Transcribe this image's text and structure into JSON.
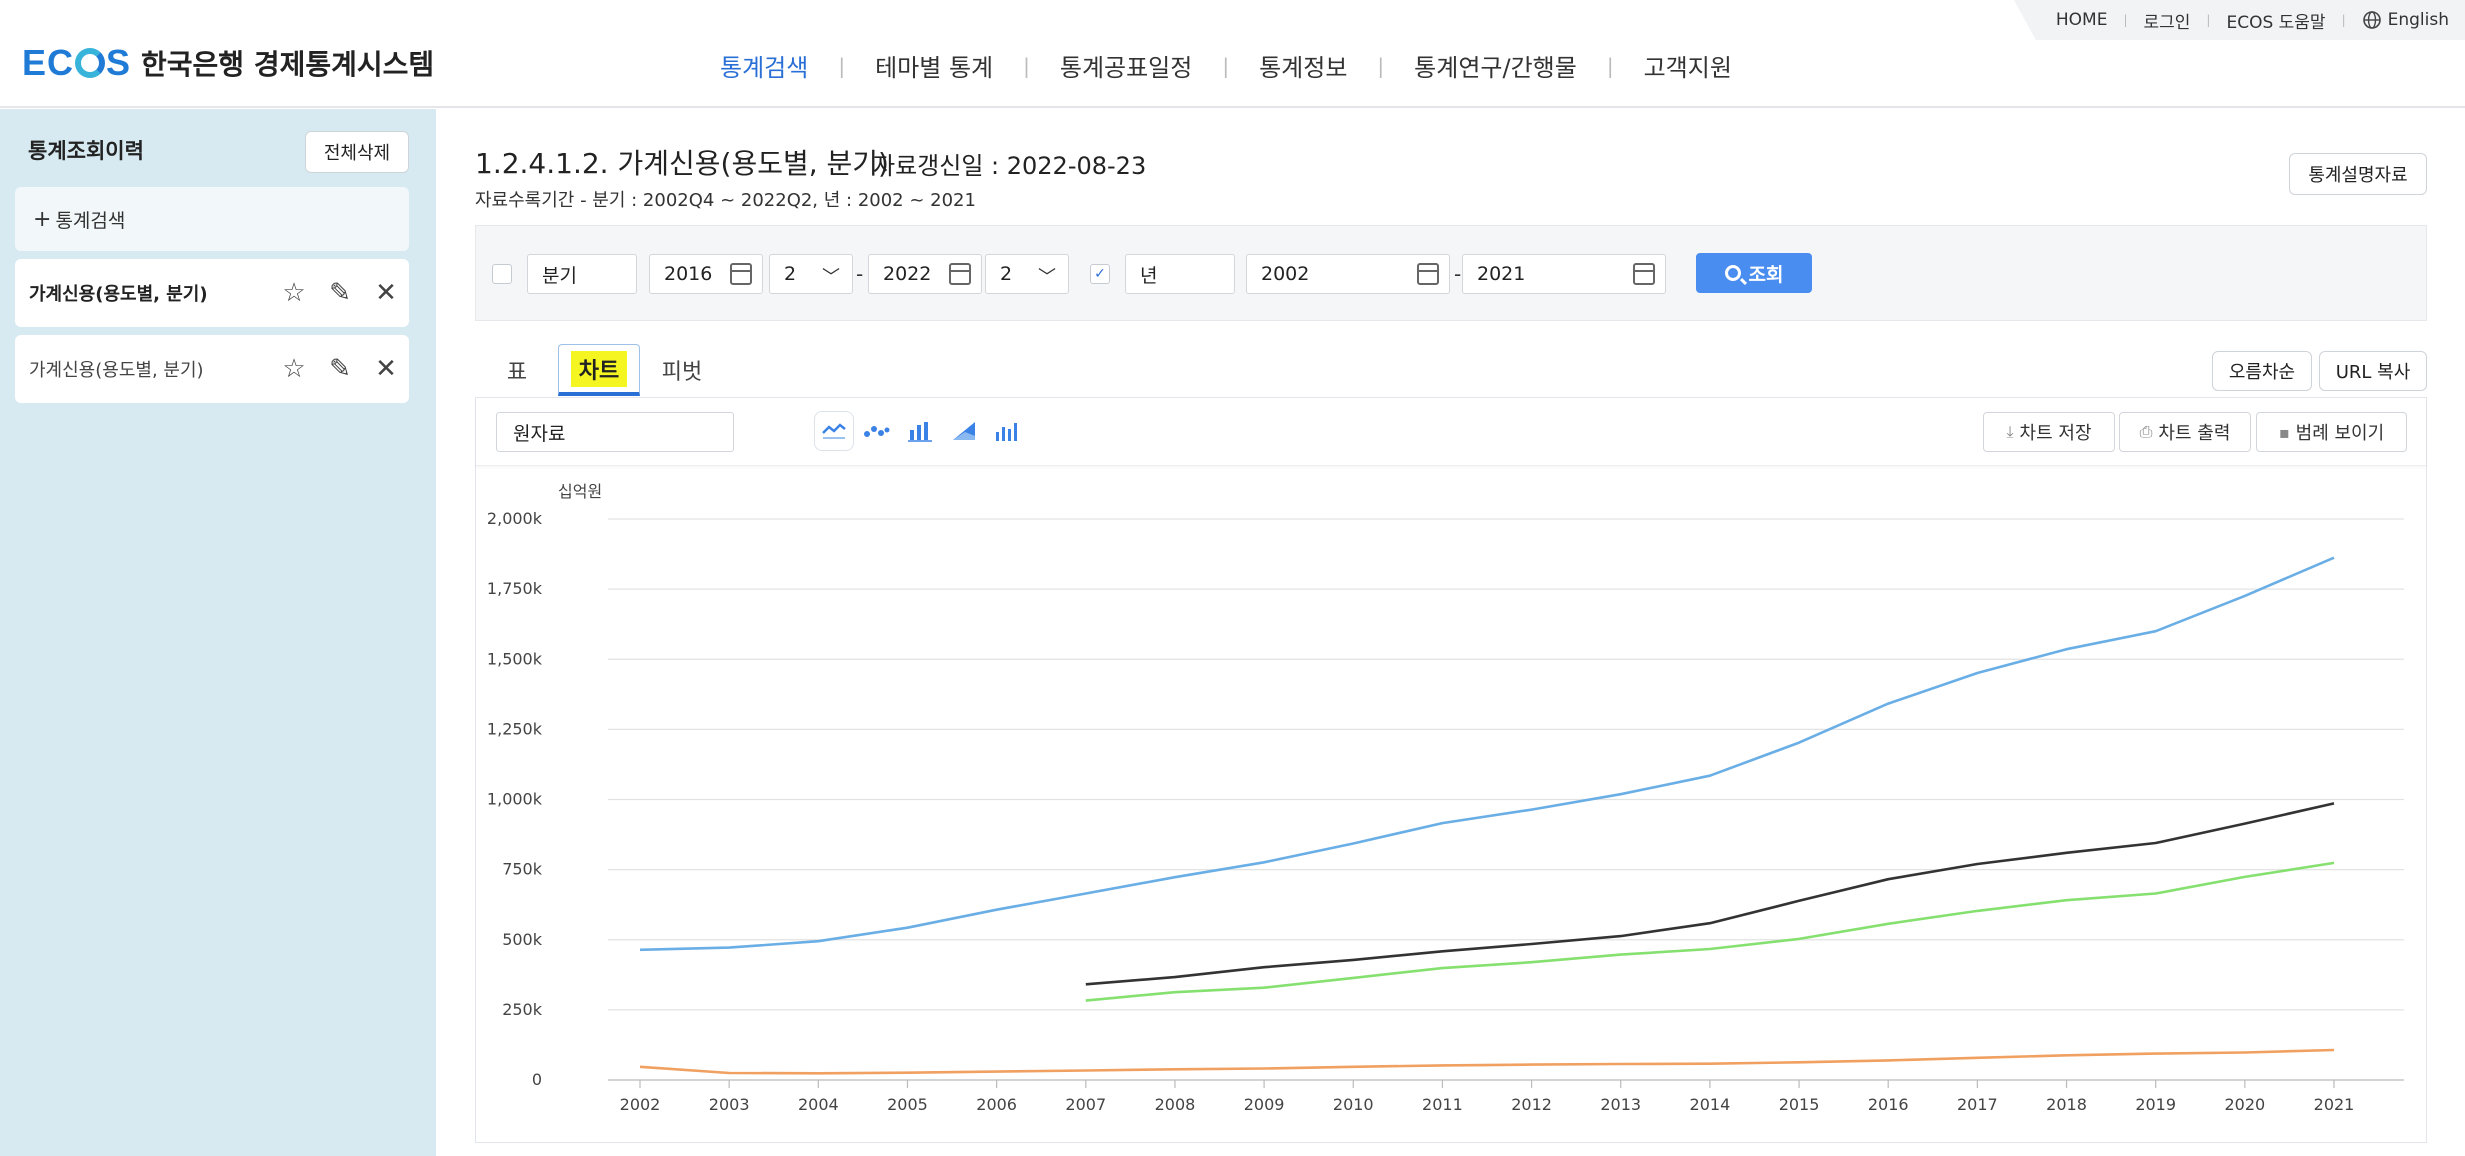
{
  "utility_nav": [
    "HOME",
    "로그인",
    "ECOS 도움말",
    "English"
  ],
  "brand": {
    "logo_text": "ECOS",
    "site_name": "한국은행 경제통계시스템"
  },
  "main_nav": [
    {
      "label": "통계검색",
      "active": true
    },
    {
      "label": "테마별 통계",
      "active": false
    },
    {
      "label": "통계공표일정",
      "active": false
    },
    {
      "label": "통계정보",
      "active": false
    },
    {
      "label": "통계연구/간행물",
      "active": false
    },
    {
      "label": "고객지원",
      "active": false
    }
  ],
  "sidebar": {
    "title": "통계조회이력",
    "delete_all": "전체삭제",
    "search_link": "통계검색",
    "history": [
      {
        "label": "가계신용(용도별, 분기)",
        "active": true
      },
      {
        "label": "가계신용(용도별, 분기)",
        "active": false
      }
    ]
  },
  "header": {
    "title": "1.2.4.1.2. 가계신용(용도별, 분기)",
    "updated": "자료갱신일 : 2022-08-23",
    "period": "자료수록기간 - 분기 : 2002Q4 ~ 2022Q2, 년 : 2002 ~ 2021",
    "explain_btn": "통계설명자료"
  },
  "filter": {
    "quarter_checked": false,
    "quarter_label": "분기",
    "q_start_year": "2016",
    "q_start_q": "2",
    "q_end_year": "2022",
    "q_end_q": "2",
    "year_checked": true,
    "year_label": "년",
    "y_start": "2002",
    "y_end": "2021",
    "dash": "-",
    "search_btn": "조회"
  },
  "tabs": [
    "표",
    "차트",
    "피벗"
  ],
  "active_tab": "차트",
  "right_buttons": {
    "sort": "오름차순",
    "url": "URL 복사"
  },
  "chart_toolbar": {
    "data_type": "원자료",
    "icons": [
      "line-chart-icon",
      "scatter-chart-icon",
      "bar-chart-icon",
      "area-chart-icon",
      "column-chart-icon"
    ],
    "save": "차트 저장",
    "print": "차트 출력",
    "legend": "범례 보이기"
  },
  "chart_data": {
    "type": "line",
    "ylabel": "십억원",
    "ylim": [
      0,
      2000
    ],
    "yticks": [
      "0",
      "250k",
      "500k",
      "750k",
      "1,000k",
      "1,250k",
      "1,500k",
      "1,750k",
      "2,000k"
    ],
    "x": [
      "2002",
      "2003",
      "2004",
      "2005",
      "2006",
      "2007",
      "2008",
      "2009",
      "2010",
      "2011",
      "2012",
      "2013",
      "2014",
      "2015",
      "2016",
      "2017",
      "2018",
      "2019",
      "2020",
      "2021"
    ],
    "grid": true,
    "legend": "hidden",
    "series": [
      {
        "color": "#6aaee6",
        "values": [
          464,
          472,
          495,
          543,
          607,
          665,
          723,
          776,
          843,
          916,
          964,
          1019,
          1085,
          1203,
          1342,
          1451,
          1536,
          1600,
          1726,
          1862
        ]
      },
      {
        "color": "#333333",
        "values": [
          null,
          null,
          null,
          null,
          null,
          341,
          367,
          402,
          428,
          459,
          485,
          513,
          559,
          639,
          716,
          770,
          810,
          845,
          914,
          986
        ]
      },
      {
        "color": "#85e070",
        "values": [
          null,
          null,
          null,
          null,
          null,
          283,
          313,
          329,
          364,
          399,
          420,
          447,
          467,
          503,
          557,
          603,
          641,
          665,
          724,
          774
        ]
      },
      {
        "color": "#f0a060",
        "values": [
          47,
          25,
          24,
          26,
          30,
          34,
          38,
          41,
          47,
          52,
          55,
          57,
          58,
          63,
          70,
          79,
          88,
          94,
          98,
          107
        ]
      }
    ]
  }
}
